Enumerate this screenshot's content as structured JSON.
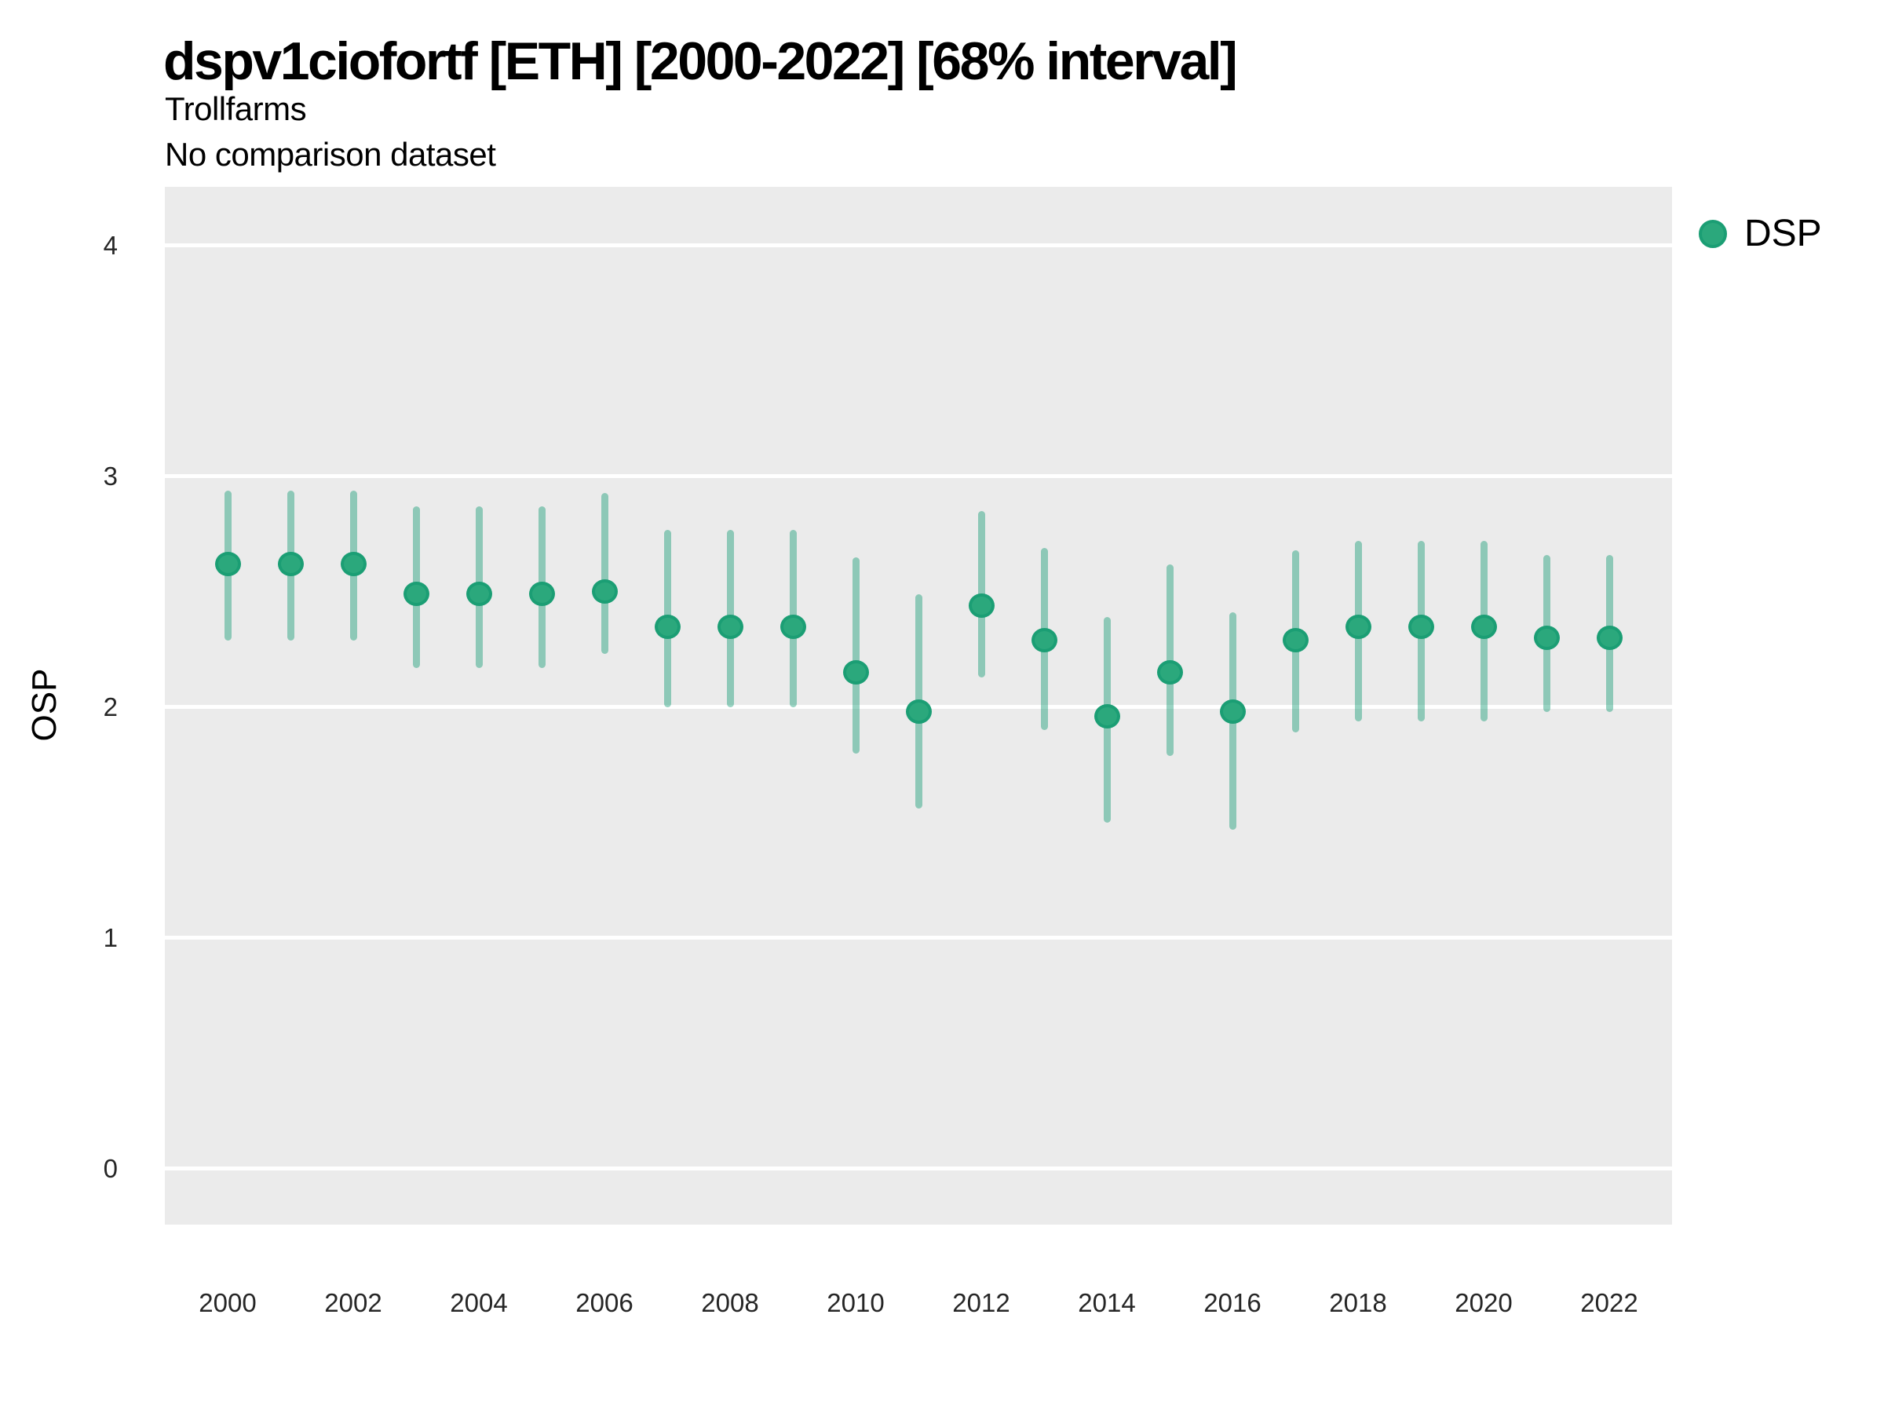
{
  "header": {
    "title": "dspv1ciofortf [ETH] [2000-2022] [68% interval]",
    "subtitle": "Trollfarms",
    "note": "No comparison dataset"
  },
  "legend": {
    "label": "DSP"
  },
  "y_axis": {
    "title": "OSP",
    "tick_labels": [
      "4",
      "3",
      "2",
      "1",
      "0"
    ]
  },
  "x_axis": {
    "tick_labels": [
      "2000",
      "2002",
      "2004",
      "2006",
      "2008",
      "2010",
      "2012",
      "2014",
      "2016",
      "2018",
      "2020",
      "2022"
    ]
  },
  "colors": {
    "panel_background": "#EBEBEB",
    "gridline": "#FFFFFF",
    "point_fill": "#2BA87C",
    "point_ring": "#1B9E74",
    "interval_bar": "rgba(27,158,119,0.45)",
    "axis_text": "#262626",
    "text": "#000000"
  },
  "chart_data": {
    "type": "scatter",
    "subtype": "pointrange",
    "title": "dspv1ciofortf [ETH] [2000-2022] [68% interval]",
    "subtitle": "Trollfarms",
    "note": "No comparison dataset",
    "xlabel": "",
    "ylabel": "OSP",
    "legend_position": "right",
    "grid": "horizontal-major-only",
    "interval_level": "68%",
    "xlim": [
      1999,
      2023
    ],
    "ylim": [
      -0.242,
      4.255
    ],
    "y_gridlines": [
      0,
      1,
      2,
      3,
      4
    ],
    "x_ticks": [
      2000,
      2002,
      2004,
      2006,
      2008,
      2010,
      2012,
      2014,
      2016,
      2018,
      2020,
      2022
    ],
    "series": [
      {
        "name": "DSP",
        "x": [
          2000,
          2001,
          2002,
          2003,
          2004,
          2005,
          2006,
          2007,
          2008,
          2009,
          2010,
          2011,
          2012,
          2013,
          2014,
          2015,
          2016,
          2017,
          2018,
          2019,
          2020,
          2021,
          2022
        ],
        "y": [
          2.62,
          2.62,
          2.62,
          2.49,
          2.49,
          2.49,
          2.5,
          2.35,
          2.35,
          2.35,
          2.15,
          1.98,
          2.44,
          2.29,
          1.96,
          2.15,
          1.98,
          2.29,
          2.35,
          2.35,
          2.35,
          2.3,
          2.3
        ],
        "y_lo": [
          2.29,
          2.29,
          2.29,
          2.17,
          2.17,
          2.17,
          2.23,
          2.0,
          2.0,
          2.0,
          1.8,
          1.56,
          2.13,
          1.9,
          1.5,
          1.79,
          1.47,
          1.89,
          1.94,
          1.94,
          1.94,
          1.98,
          1.98
        ],
        "y_hi": [
          2.94,
          2.94,
          2.94,
          2.87,
          2.87,
          2.87,
          2.93,
          2.77,
          2.77,
          2.77,
          2.65,
          2.49,
          2.85,
          2.69,
          2.39,
          2.62,
          2.41,
          2.68,
          2.72,
          2.72,
          2.72,
          2.66,
          2.66
        ]
      }
    ]
  }
}
